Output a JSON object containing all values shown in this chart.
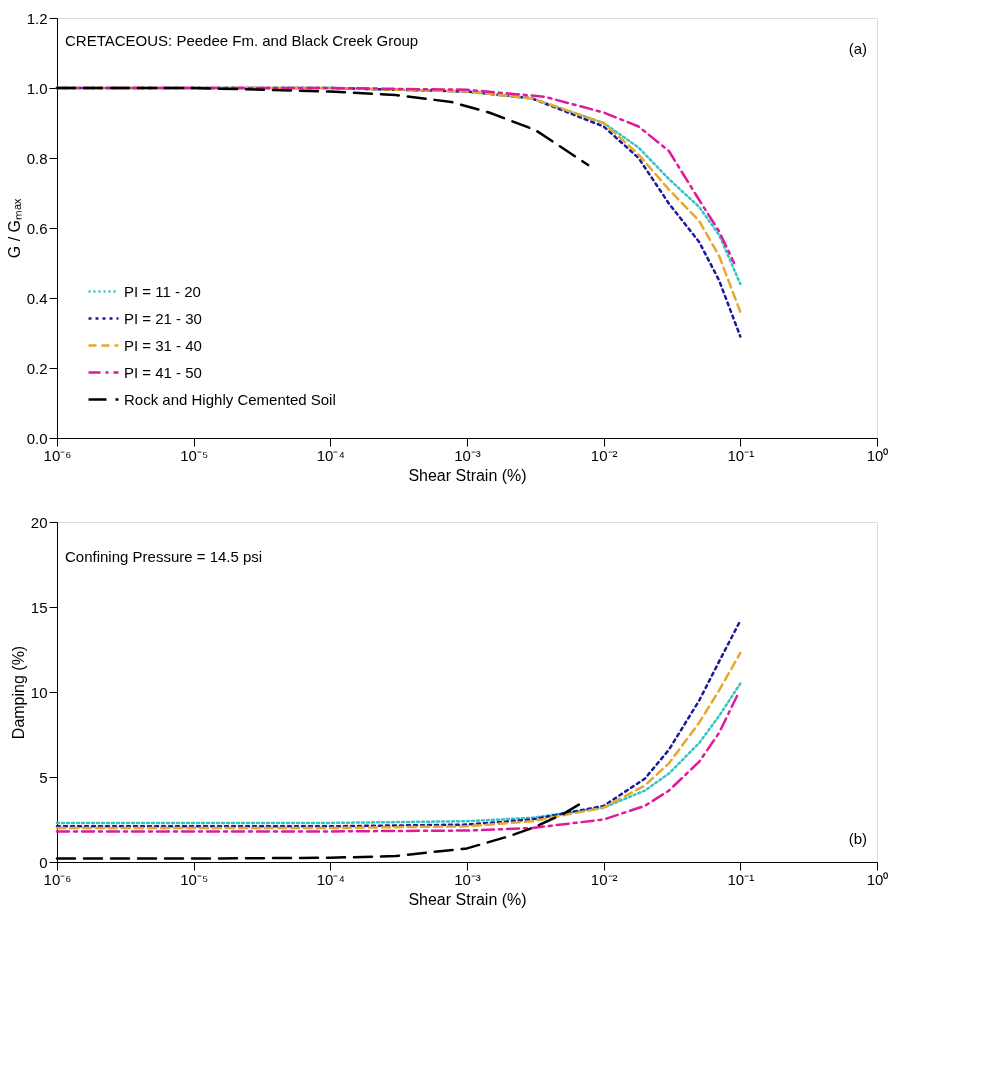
{
  "chart_data": [
    {
      "type": "line",
      "xlabel": "Shear Strain (%)",
      "ylabel": "G / Gₘₐₓ",
      "log": "x",
      "grid": false,
      "legend": "bottom left",
      "marker": "none",
      "annotations": [
        "CRETACEOUS: Peedee Fm. and Black Creek Group",
        "(a)"
      ],
      "xlim": [
        1e-06,
        1
      ],
      "ylim": [
        0,
        1.2
      ],
      "yticks": [
        {
          "value": 0,
          "label": "0.0"
        },
        0.2,
        0.4,
        0.6,
        0.8,
        {
          "value": 1,
          "label": "1.0"
        },
        1.2
      ],
      "xticks": [
        {
          "value": 1e-06,
          "label": "10⁻⁶"
        },
        {
          "value": 1e-05,
          "label": "10⁻⁵"
        },
        {
          "value": 0.0001,
          "label": "10⁻⁴"
        },
        {
          "value": 0.001,
          "label": "10⁻³"
        },
        {
          "value": 0.01,
          "label": "10⁻²"
        },
        {
          "value": 0.1,
          "label": "10⁻¹"
        },
        {
          "value": 1,
          "label": "10⁰"
        }
      ],
      "series": [
        {
          "name": "PI = 11 - 20",
          "color": "#33c4c4",
          "line_style": "dotted",
          "x": [
            1e-06,
            1e-05,
            0.0001,
            0.001,
            0.003,
            0.01,
            0.018,
            0.03,
            0.05,
            0.07,
            0.1
          ],
          "values": [
            1,
            1,
            1,
            0.99,
            0.97,
            0.9,
            0.83,
            0.74,
            0.66,
            0.58,
            0.44
          ]
        },
        {
          "name": "PI = 21 - 30",
          "color": "#1a1a9c",
          "line_style": "dotted",
          "x": [
            1e-06,
            1e-05,
            0.0001,
            0.001,
            0.003,
            0.01,
            0.018,
            0.03,
            0.05,
            0.07,
            0.1
          ],
          "values": [
            1,
            1,
            1,
            0.99,
            0.97,
            0.89,
            0.8,
            0.67,
            0.56,
            0.45,
            0.29
          ]
        },
        {
          "name": "PI = 31 - 40",
          "color": "#e6a82e",
          "line_style": "dashed",
          "x": [
            1e-06,
            1e-05,
            0.0001,
            0.001,
            0.003,
            0.01,
            0.018,
            0.03,
            0.05,
            0.07,
            0.1
          ],
          "values": [
            1,
            1,
            1,
            0.99,
            0.97,
            0.9,
            0.81,
            0.71,
            0.62,
            0.52,
            0.36
          ]
        },
        {
          "name": "PI = 41 - 50",
          "color": "#e0199c",
          "line_style": "dashed",
          "x": [
            1e-06,
            1e-05,
            0.0001,
            0.001,
            0.0037,
            0.01,
            0.018,
            0.03,
            0.05,
            0.07,
            0.09
          ],
          "values": [
            1,
            1,
            1,
            0.995,
            0.975,
            0.93,
            0.89,
            0.82,
            0.68,
            0.59,
            0.5
          ]
        },
        {
          "name": "Rock and Highly Cemented Soil",
          "color": "#000000",
          "line_style": "dashed",
          "x": [
            1e-06,
            1e-05,
            0.0001,
            0.0003,
            0.00077,
            0.00145,
            0.00316,
            0.0077
          ],
          "values": [
            1,
            1,
            0.99,
            0.98,
            0.96,
            0.93,
            0.88,
            0.78
          ]
        }
      ]
    },
    {
      "type": "line",
      "xlabel": "Shear Strain (%)",
      "ylabel": "Damping (%)",
      "log": "x",
      "grid": false,
      "marker": "none",
      "annotations": [
        "Confining Pressure = 14.5 psi",
        "(b)"
      ],
      "xlim": [
        1e-06,
        1
      ],
      "ylim": [
        0,
        20
      ],
      "yticks": [
        0,
        5,
        10,
        15,
        20
      ],
      "xticks": [
        {
          "value": 1e-06,
          "label": "10⁻⁶"
        },
        {
          "value": 1e-05,
          "label": "10⁻⁵"
        },
        {
          "value": 0.0001,
          "label": "10⁻⁴"
        },
        {
          "value": 0.001,
          "label": "10⁻³"
        },
        {
          "value": 0.01,
          "label": "10⁻²"
        },
        {
          "value": 0.1,
          "label": "10⁻¹"
        },
        {
          "value": 1,
          "label": "10⁰"
        }
      ],
      "series": [
        {
          "color": "#33c4c4",
          "line_style": "dotted",
          "x": [
            1e-06,
            1e-05,
            0.0001,
            0.001,
            0.003,
            0.01,
            0.02,
            0.03,
            0.05,
            0.07,
            0.1
          ],
          "values": [
            2.3,
            2.3,
            2.3,
            2.4,
            2.6,
            3.2,
            4.2,
            5.2,
            7.0,
            8.6,
            10.5
          ]
        },
        {
          "color": "#1a1a9c",
          "line_style": "dotted",
          "x": [
            1e-06,
            1e-05,
            0.0001,
            0.001,
            0.003,
            0.01,
            0.02,
            0.03,
            0.05,
            0.07,
            0.1
          ],
          "values": [
            2.1,
            2.1,
            2.1,
            2.2,
            2.5,
            3.3,
            4.9,
            6.6,
            9.5,
            11.8,
            14.2
          ]
        },
        {
          "color": "#e6a82e",
          "line_style": "dashed",
          "x": [
            1e-06,
            1e-05,
            0.0001,
            0.001,
            0.003,
            0.01,
            0.02,
            0.03,
            0.05,
            0.07,
            0.1
          ],
          "values": [
            2.0,
            2.0,
            2.0,
            2.1,
            2.4,
            3.2,
            4.5,
            5.8,
            8.2,
            10.1,
            12.3
          ]
        },
        {
          "color": "#e0199c",
          "line_style": "dashed",
          "x": [
            1e-06,
            1e-05,
            0.0001,
            0.001,
            0.003,
            0.01,
            0.02,
            0.03,
            0.05,
            0.07,
            0.095
          ],
          "values": [
            1.8,
            1.8,
            1.8,
            1.85,
            2.0,
            2.5,
            3.3,
            4.2,
            5.9,
            7.6,
            9.8
          ]
        },
        {
          "color": "#000000",
          "line_style": "dashed",
          "x": [
            1e-06,
            1e-05,
            0.0001,
            0.0003,
            0.001,
            0.002,
            0.003,
            0.005,
            0.007
          ],
          "values": [
            0.2,
            0.2,
            0.25,
            0.35,
            0.8,
            1.5,
            2.0,
            2.8,
            3.5
          ]
        }
      ]
    }
  ]
}
